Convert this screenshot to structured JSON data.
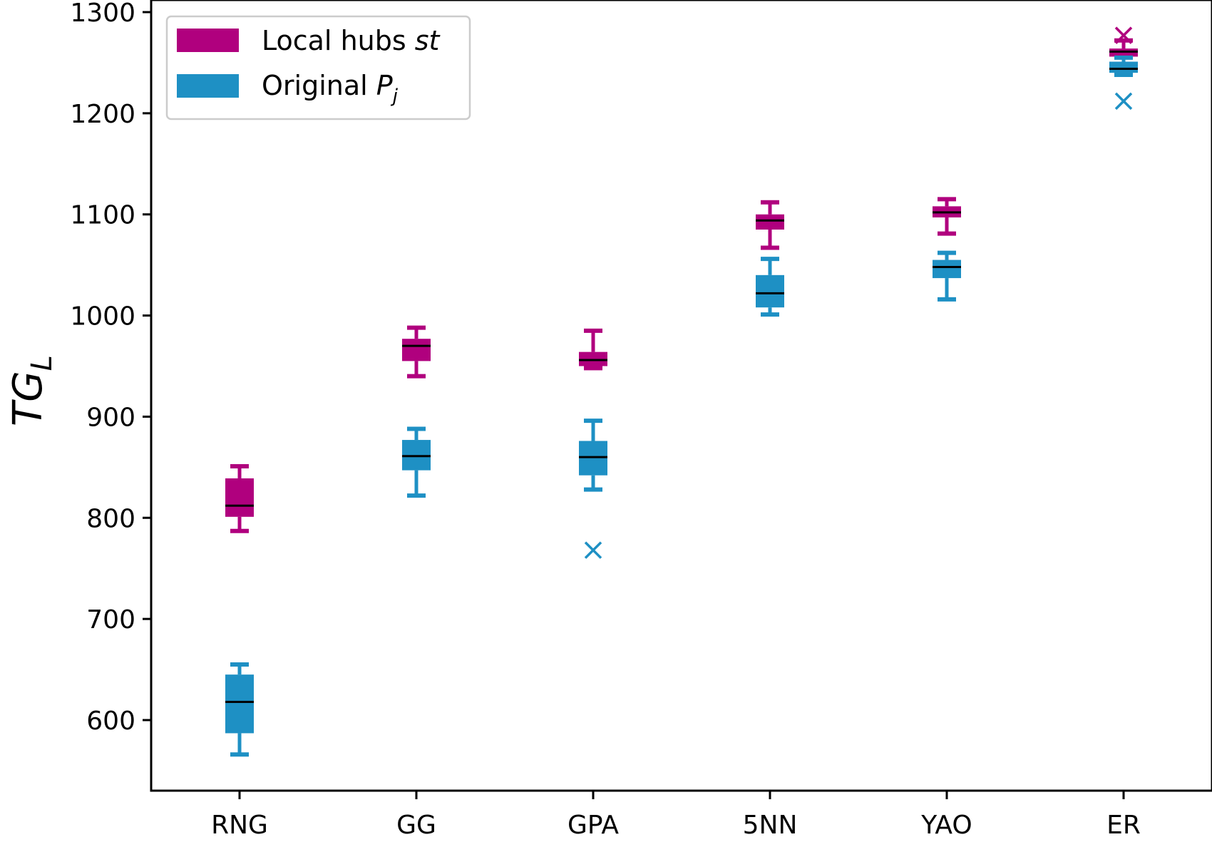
{
  "chart_data": {
    "type": "box",
    "categories": [
      "RNG",
      "GG",
      "GPA",
      "5NN",
      "YAO",
      "ER"
    ],
    "ylabel_main": "TG",
    "ylabel_sub": "L",
    "xlabel": "",
    "ylim": [
      530,
      1300
    ],
    "yticks": [
      600,
      700,
      800,
      900,
      1000,
      1100,
      1200,
      1300
    ],
    "grid": false,
    "legend_position": "upper-left",
    "series": [
      {
        "name_main": "Local hubs ",
        "name_sub": "st",
        "color": "#b0007e",
        "boxes": [
          {
            "whisker_low": 787,
            "q1": 801,
            "median": 812,
            "q3": 839,
            "whisker_high": 851,
            "outliers": []
          },
          {
            "whisker_low": 940,
            "q1": 955,
            "median": 970,
            "q3": 977,
            "whisker_high": 988,
            "outliers": []
          },
          {
            "whisker_low": 948,
            "q1": 950,
            "median": 956,
            "q3": 964,
            "whisker_high": 985,
            "outliers": []
          },
          {
            "whisker_low": 1067,
            "q1": 1085,
            "median": 1094,
            "q3": 1100,
            "whisker_high": 1112,
            "outliers": []
          },
          {
            "whisker_low": 1081,
            "q1": 1097,
            "median": 1102,
            "q3": 1108,
            "whisker_high": 1115,
            "outliers": []
          },
          {
            "whisker_low": 1238,
            "q1": 1256,
            "median": 1261,
            "q3": 1264,
            "whisker_high": 1272,
            "outliers": [
              1277
            ]
          }
        ]
      },
      {
        "name_main": "Original ",
        "name_sub": "P",
        "name_subscript": "j",
        "color": "#1e90c4",
        "boxes": [
          {
            "whisker_low": 566,
            "q1": 587,
            "median": 618,
            "q3": 645,
            "whisker_high": 655,
            "outliers": []
          },
          {
            "whisker_low": 822,
            "q1": 847,
            "median": 861,
            "q3": 877,
            "whisker_high": 888,
            "outliers": []
          },
          {
            "whisker_low": 828,
            "q1": 842,
            "median": 860,
            "q3": 876,
            "whisker_high": 896,
            "outliers": [
              768
            ]
          },
          {
            "whisker_low": 1001,
            "q1": 1008,
            "median": 1022,
            "q3": 1040,
            "whisker_high": 1056,
            "outliers": []
          },
          {
            "whisker_low": 1016,
            "q1": 1037,
            "median": 1048,
            "q3": 1055,
            "whisker_high": 1062,
            "outliers": []
          },
          {
            "whisker_low": 1238,
            "q1": 1240,
            "median": 1244,
            "q3": 1251,
            "whisker_high": 1255,
            "outliers": [
              1212
            ]
          }
        ]
      }
    ]
  }
}
